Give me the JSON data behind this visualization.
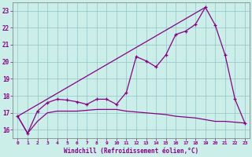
{
  "xlabel": "Windchill (Refroidissement éolien,°C)",
  "bg_color": "#cceee8",
  "line_color": "#880088",
  "grid_color": "#99cccc",
  "xlim": [
    -0.5,
    23.5
  ],
  "ylim": [
    15.5,
    23.5
  ],
  "yticks": [
    16,
    17,
    18,
    19,
    20,
    21,
    22,
    23
  ],
  "xticks": [
    0,
    1,
    2,
    3,
    4,
    5,
    6,
    7,
    8,
    9,
    10,
    11,
    12,
    13,
    14,
    15,
    16,
    17,
    18,
    19,
    20,
    21,
    22,
    23
  ],
  "line1_x": [
    0,
    1,
    2,
    3,
    4,
    5,
    6,
    7,
    8,
    9,
    10,
    11,
    12,
    13,
    14,
    15,
    16,
    17,
    18,
    19,
    20,
    21,
    22,
    23
  ],
  "line1_y": [
    16.8,
    15.8,
    17.1,
    17.6,
    17.8,
    17.75,
    17.65,
    17.5,
    17.8,
    17.8,
    17.5,
    18.2,
    20.3,
    20.05,
    19.7,
    20.4,
    21.6,
    21.8,
    22.2,
    23.2,
    22.15,
    20.4,
    17.8,
    16.4
  ],
  "line2_x": [
    0,
    1,
    2,
    3,
    4,
    5,
    6,
    7,
    8,
    9,
    10,
    11,
    12,
    13,
    14,
    15,
    16,
    17,
    18,
    19,
    20,
    21,
    22,
    23
  ],
  "line2_y": [
    16.8,
    15.8,
    16.5,
    17.0,
    17.1,
    17.1,
    17.1,
    17.15,
    17.2,
    17.2,
    17.2,
    17.1,
    17.05,
    17.0,
    16.95,
    16.9,
    16.8,
    16.75,
    16.7,
    16.6,
    16.5,
    16.5,
    16.45,
    16.4
  ],
  "line3_x": [
    0,
    19
  ],
  "line3_y": [
    16.8,
    23.2
  ]
}
